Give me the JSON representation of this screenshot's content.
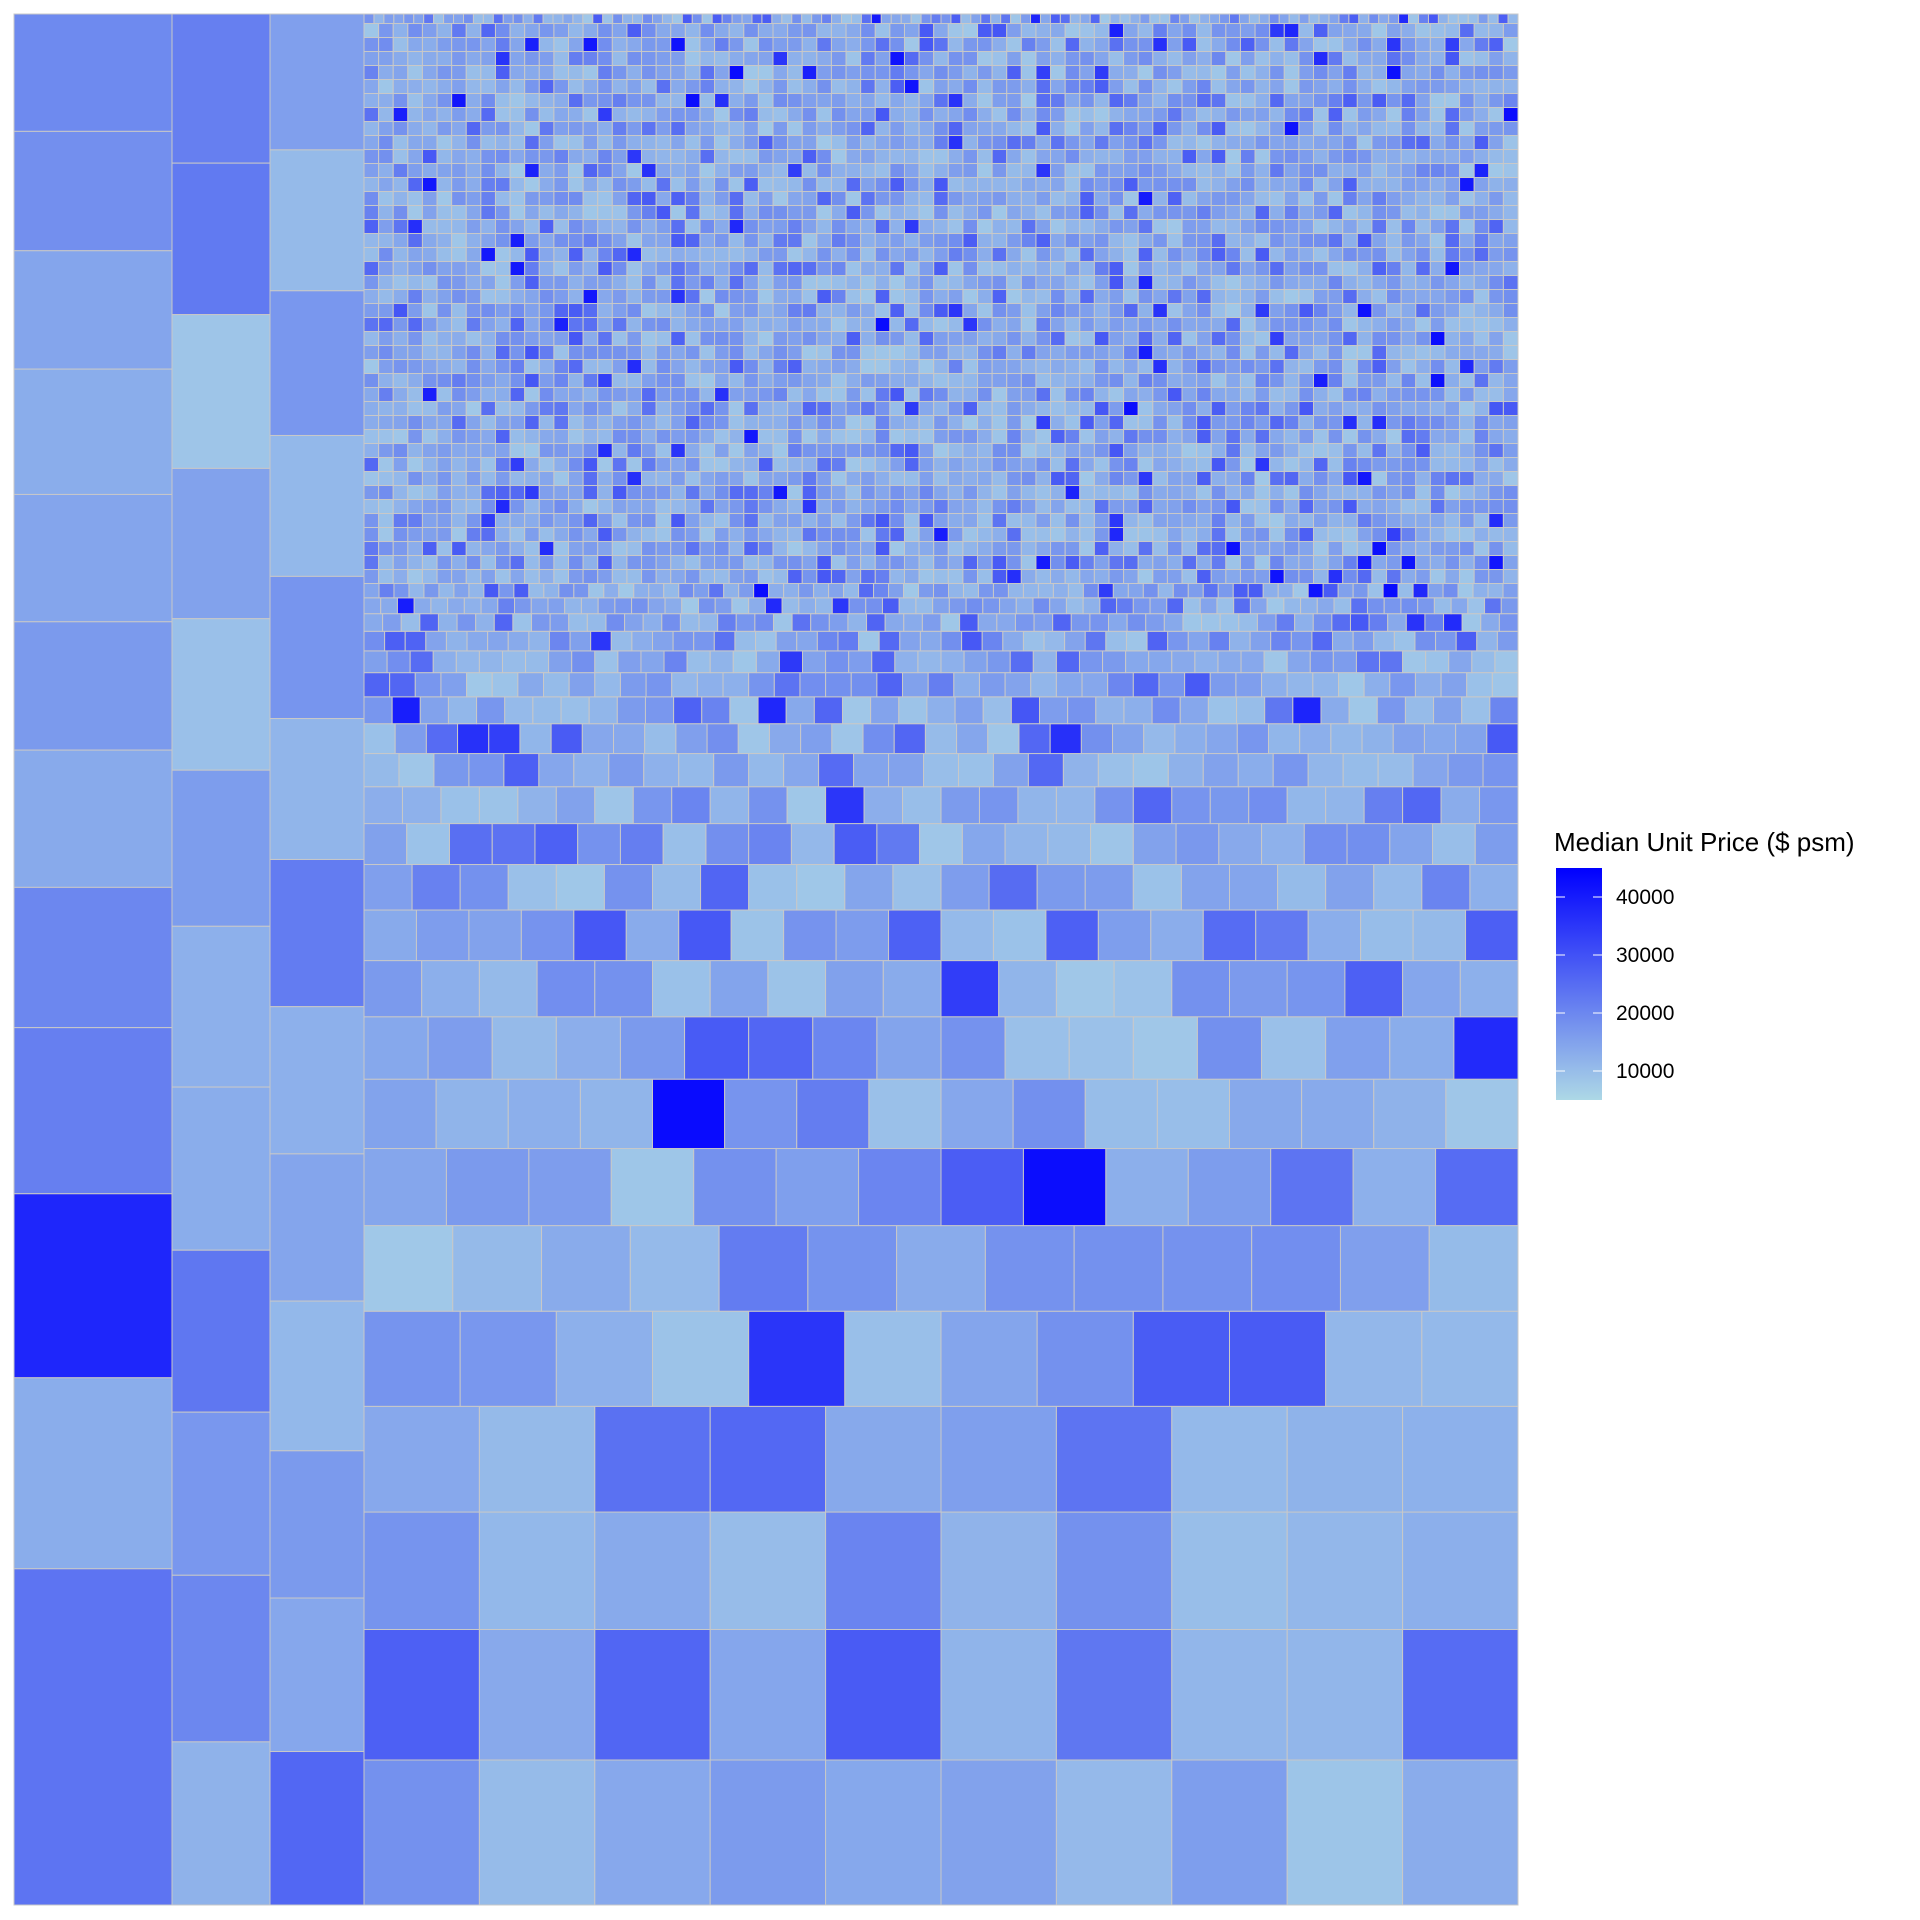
{
  "chart_data": {
    "type": "treemap",
    "title": "",
    "subtitle": "",
    "value_variable": "Median Unit Price ($ psm)",
    "note": "Treemap with unlabeled tiles. Each row lists tiles left-to-right; each tile is [relative width weight, fill value]. Rows are listed top-to-bottom within each column band; bands are listed left-to-right.",
    "colour_scale": {
      "title": "Median Unit Price ($ psm)",
      "low_color": "#add8e6",
      "high_color": "#0000ff",
      "min": 5000,
      "max": 45000,
      "breaks": [
        10000,
        20000,
        30000,
        40000
      ],
      "break_labels": [
        "10000",
        "20000",
        "30000",
        "40000"
      ]
    },
    "bands": [
      {
        "width": 158,
        "rows": [
          {
            "h": 118,
            "tiles": [
              [
                1,
                19500
              ]
            ]
          },
          {
            "h": 120,
            "tiles": [
              [
                1,
                18500
              ]
            ]
          },
          {
            "h": 119,
            "tiles": [
              [
                1,
                14500
              ]
            ]
          },
          {
            "h": 126,
            "tiles": [
              [
                1,
                13000
              ]
            ]
          },
          {
            "h": 128,
            "tiles": [
              [
                1,
                14500
              ]
            ]
          },
          {
            "h": 129,
            "tiles": [
              [
                1,
                16500
              ]
            ]
          },
          {
            "h": 138,
            "tiles": [
              [
                1,
                13500
              ]
            ]
          },
          {
            "h": 141,
            "tiles": [
              [
                1,
                20000
              ]
            ]
          },
          {
            "h": 167,
            "tiles": [
              [
                1,
                21500
              ]
            ]
          },
          {
            "h": 185,
            "tiles": [
              [
                1,
                38000
              ]
            ]
          },
          {
            "h": 192,
            "tiles": [
              [
                1,
                13000
              ]
            ]
          },
          {
            "h": 338,
            "tiles": [
              [
                1,
                23500
              ]
            ]
          }
        ]
      },
      {
        "width": 1360,
        "rows": [
          {
            "h": 1632,
            "tiles": []
          }
        ]
      }
    ],
    "sub_bands": [
      {
        "width": 98,
        "rows": [
          {
            "h": 128,
            "tiles": [
              [
                1,
                21500
              ]
            ]
          },
          {
            "h": 130,
            "tiles": [
              [
                1,
                22500
              ]
            ]
          },
          {
            "h": 132,
            "tiles": [
              [
                1,
                8500
              ]
            ]
          },
          {
            "h": 129,
            "tiles": [
              [
                1,
                15000
              ]
            ]
          },
          {
            "h": 130,
            "tiles": [
              [
                1,
                9500
              ]
            ]
          },
          {
            "h": 134,
            "tiles": [
              [
                1,
                16000
              ]
            ]
          },
          {
            "h": 138,
            "tiles": [
              [
                1,
                12500
              ]
            ]
          },
          {
            "h": 140,
            "tiles": [
              [
                1,
                13000
              ]
            ]
          },
          {
            "h": 139,
            "tiles": [
              [
                1,
                23000
              ]
            ]
          },
          {
            "h": 140,
            "tiles": [
              [
                1,
                17000
              ]
            ]
          },
          {
            "h": 143,
            "tiles": [
              [
                1,
                20000
              ]
            ]
          },
          {
            "h": 140,
            "tiles": [
              [
                1,
                12000
              ]
            ]
          }
        ]
      },
      {
        "width": 94,
        "rows": [
          {
            "h": 108,
            "tiles": [
              [
                1,
                15500
              ]
            ]
          },
          {
            "h": 112,
            "tiles": [
              [
                1,
                10500
              ]
            ]
          },
          {
            "h": 115,
            "tiles": [
              [
                1,
                17000
              ]
            ]
          },
          {
            "h": 112,
            "tiles": [
              [
                1,
                11000
              ]
            ]
          },
          {
            "h": 113,
            "tiles": [
              [
                1,
                17500
              ]
            ]
          },
          {
            "h": 112,
            "tiles": [
              [
                1,
                11500
              ]
            ]
          },
          {
            "h": 117,
            "tiles": [
              [
                1,
                22000
              ]
            ]
          },
          {
            "h": 117,
            "tiles": [
              [
                1,
                12500
              ]
            ]
          },
          {
            "h": 117,
            "tiles": [
              [
                1,
                14500
              ]
            ]
          },
          {
            "h": 119,
            "tiles": [
              [
                1,
                11000
              ]
            ]
          },
          {
            "h": 117,
            "tiles": [
              [
                1,
                16500
              ]
            ]
          },
          {
            "h": 122,
            "tiles": [
              [
                1,
                14000
              ]
            ]
          },
          {
            "h": 122,
            "tiles": [
              [
                1,
                26000
              ]
            ]
          }
        ]
      }
    ]
  }
}
